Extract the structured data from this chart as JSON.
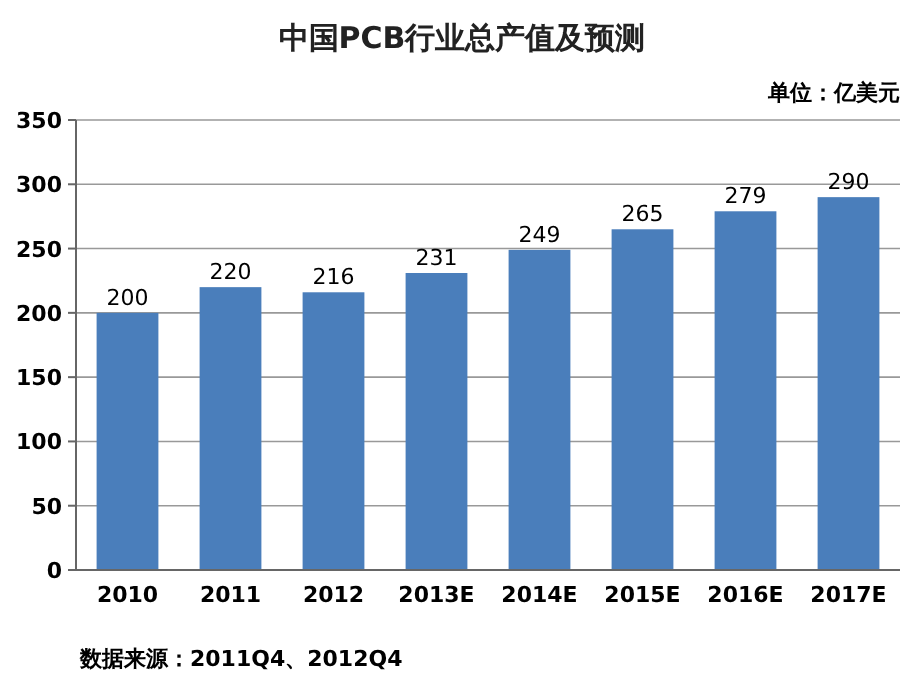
{
  "chart_data": {
    "type": "bar",
    "title": "中国PCB行业总产值及预测",
    "categories": [
      "2010",
      "2011",
      "2012",
      "2013E",
      "2014E",
      "2015E",
      "2016E",
      "2017E"
    ],
    "values": [
      200,
      220,
      216,
      231,
      249,
      265,
      279,
      290
    ],
    "color": "#4a7ebb",
    "ylim": [
      0,
      350
    ],
    "yticks": [
      0,
      50,
      100,
      150,
      200,
      250,
      300,
      350
    ],
    "grid": "y",
    "data_labels": true,
    "annotations": [
      "单位：亿美元",
      "数据来源：2011Q4、2012Q4"
    ]
  }
}
